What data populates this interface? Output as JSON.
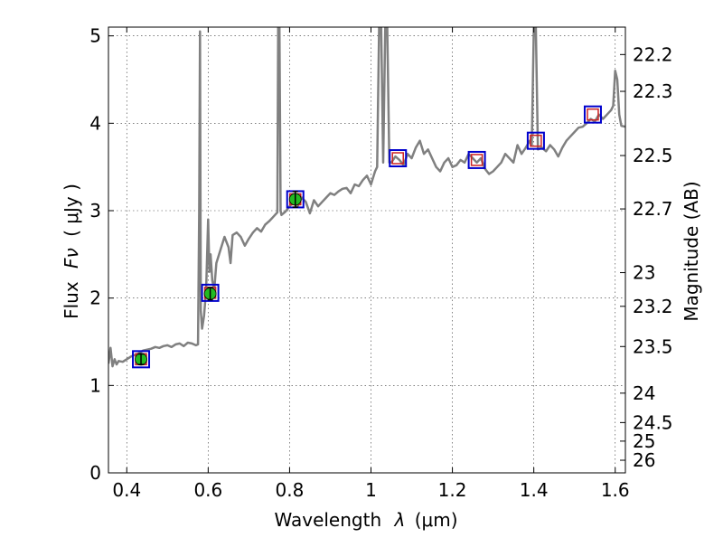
{
  "chart_data": {
    "type": "line",
    "xlabel": "Wavelength",
    "xlabel_symbol": "λ",
    "xlabel_unit": "(μm)",
    "ylabel": "Flux",
    "ylabel_symbol": "Fν",
    "ylabel_unit": "( μJy )",
    "ylabel_right": "Magnitude (AB)",
    "xlim": [
      0.355,
      1.625
    ],
    "ylim": [
      0,
      5.1
    ],
    "grid": true,
    "x_ticks": [
      0.4,
      0.6,
      0.8,
      1.0,
      1.2,
      1.4,
      1.6
    ],
    "x_tick_labels": [
      "0.4",
      "0.6",
      "0.8",
      "1",
      "1.2",
      "1.4",
      "1.6"
    ],
    "y_ticks": [
      0,
      1,
      2,
      3,
      4,
      5
    ],
    "y_tick_labels": [
      "0",
      "1",
      "2",
      "3",
      "4",
      "5"
    ],
    "right_ticks": [
      {
        "mag": 22.2,
        "label": "22.2"
      },
      {
        "mag": 22.3,
        "label": "22.3"
      },
      {
        "mag": 22.5,
        "label": "22.5"
      },
      {
        "mag": 22.7,
        "label": "22.7"
      },
      {
        "mag": 23.0,
        "label": "23"
      },
      {
        "mag": 23.2,
        "label": "23.2"
      },
      {
        "mag": 23.5,
        "label": "23.5"
      },
      {
        "mag": 24.0,
        "label": "24"
      },
      {
        "mag": 24.5,
        "label": "24.5"
      },
      {
        "mag": 25.0,
        "label": "25"
      },
      {
        "mag": 26.0,
        "label": "26"
      }
    ],
    "colors": {
      "spectrum": "#808080",
      "photometry_fill": "#22bb22",
      "model_box": "#0000cc",
      "model_box_inner": "#cc2222"
    },
    "series": [
      {
        "values": [
          [
            0.355,
            1.25
          ],
          [
            0.36,
            1.43
          ],
          [
            0.365,
            1.22
          ],
          [
            0.37,
            1.3
          ],
          [
            0.375,
            1.24
          ],
          [
            0.38,
            1.28
          ],
          [
            0.39,
            1.27
          ],
          [
            0.4,
            1.3
          ],
          [
            0.41,
            1.33
          ],
          [
            0.42,
            1.35
          ],
          [
            0.43,
            1.37
          ],
          [
            0.44,
            1.4
          ],
          [
            0.45,
            1.41
          ],
          [
            0.46,
            1.42
          ],
          [
            0.47,
            1.44
          ],
          [
            0.48,
            1.43
          ],
          [
            0.49,
            1.45
          ],
          [
            0.5,
            1.46
          ],
          [
            0.51,
            1.44
          ],
          [
            0.52,
            1.47
          ],
          [
            0.53,
            1.48
          ],
          [
            0.54,
            1.45
          ],
          [
            0.55,
            1.49
          ],
          [
            0.56,
            1.48
          ],
          [
            0.57,
            1.46
          ],
          [
            0.575,
            1.47
          ],
          [
            0.578,
            3.0
          ],
          [
            0.58,
            5.05
          ],
          [
            0.582,
            1.85
          ],
          [
            0.585,
            1.65
          ],
          [
            0.59,
            1.8
          ],
          [
            0.595,
            2.1
          ],
          [
            0.6,
            2.9
          ],
          [
            0.603,
            2.3
          ],
          [
            0.606,
            2.5
          ],
          [
            0.61,
            2.2
          ],
          [
            0.615,
            2.1
          ],
          [
            0.62,
            2.4
          ],
          [
            0.63,
            2.55
          ],
          [
            0.64,
            2.7
          ],
          [
            0.65,
            2.58
          ],
          [
            0.655,
            2.4
          ],
          [
            0.66,
            2.72
          ],
          [
            0.67,
            2.75
          ],
          [
            0.68,
            2.7
          ],
          [
            0.69,
            2.6
          ],
          [
            0.7,
            2.68
          ],
          [
            0.71,
            2.75
          ],
          [
            0.72,
            2.8
          ],
          [
            0.73,
            2.76
          ],
          [
            0.74,
            2.84
          ],
          [
            0.75,
            2.88
          ],
          [
            0.76,
            2.93
          ],
          [
            0.77,
            2.98
          ],
          [
            0.772,
            5.1
          ],
          [
            0.775,
            5.1
          ],
          [
            0.778,
            3.0
          ],
          [
            0.78,
            2.95
          ],
          [
            0.79,
            2.99
          ],
          [
            0.8,
            3.05
          ],
          [
            0.81,
            3.1
          ],
          [
            0.82,
            3.05
          ],
          [
            0.83,
            3.15
          ],
          [
            0.84,
            3.1
          ],
          [
            0.85,
            2.97
          ],
          [
            0.86,
            3.12
          ],
          [
            0.87,
            3.05
          ],
          [
            0.88,
            3.1
          ],
          [
            0.89,
            3.15
          ],
          [
            0.9,
            3.2
          ],
          [
            0.91,
            3.18
          ],
          [
            0.92,
            3.22
          ],
          [
            0.93,
            3.25
          ],
          [
            0.94,
            3.26
          ],
          [
            0.95,
            3.2
          ],
          [
            0.96,
            3.3
          ],
          [
            0.97,
            3.28
          ],
          [
            0.98,
            3.35
          ],
          [
            0.99,
            3.4
          ],
          [
            1.0,
            3.3
          ],
          [
            1.01,
            3.45
          ],
          [
            1.015,
            3.5
          ],
          [
            1.02,
            5.1
          ],
          [
            1.025,
            5.1
          ],
          [
            1.03,
            3.55
          ],
          [
            1.035,
            5.1
          ],
          [
            1.04,
            5.1
          ],
          [
            1.045,
            3.55
          ],
          [
            1.05,
            3.55
          ],
          [
            1.06,
            3.62
          ],
          [
            1.07,
            3.58
          ],
          [
            1.08,
            3.52
          ],
          [
            1.09,
            3.65
          ],
          [
            1.1,
            3.6
          ],
          [
            1.11,
            3.72
          ],
          [
            1.12,
            3.8
          ],
          [
            1.13,
            3.65
          ],
          [
            1.14,
            3.7
          ],
          [
            1.15,
            3.6
          ],
          [
            1.16,
            3.5
          ],
          [
            1.17,
            3.45
          ],
          [
            1.18,
            3.55
          ],
          [
            1.19,
            3.6
          ],
          [
            1.2,
            3.5
          ],
          [
            1.21,
            3.52
          ],
          [
            1.22,
            3.58
          ],
          [
            1.23,
            3.55
          ],
          [
            1.24,
            3.65
          ],
          [
            1.25,
            3.6
          ],
          [
            1.26,
            3.55
          ],
          [
            1.27,
            3.6
          ],
          [
            1.28,
            3.48
          ],
          [
            1.29,
            3.42
          ],
          [
            1.3,
            3.45
          ],
          [
            1.31,
            3.5
          ],
          [
            1.32,
            3.55
          ],
          [
            1.33,
            3.65
          ],
          [
            1.34,
            3.6
          ],
          [
            1.35,
            3.55
          ],
          [
            1.36,
            3.75
          ],
          [
            1.37,
            3.65
          ],
          [
            1.38,
            3.72
          ],
          [
            1.39,
            3.8
          ],
          [
            1.395,
            3.75
          ],
          [
            1.4,
            5.1
          ],
          [
            1.405,
            5.1
          ],
          [
            1.41,
            3.7
          ],
          [
            1.42,
            3.72
          ],
          [
            1.43,
            3.68
          ],
          [
            1.44,
            3.75
          ],
          [
            1.45,
            3.7
          ],
          [
            1.46,
            3.62
          ],
          [
            1.47,
            3.72
          ],
          [
            1.48,
            3.8
          ],
          [
            1.49,
            3.85
          ],
          [
            1.5,
            3.9
          ],
          [
            1.51,
            3.95
          ],
          [
            1.52,
            3.96
          ],
          [
            1.53,
            4.0
          ],
          [
            1.54,
            4.05
          ],
          [
            1.55,
            4.02
          ],
          [
            1.56,
            4.1
          ],
          [
            1.57,
            4.05
          ],
          [
            1.58,
            4.1
          ],
          [
            1.59,
            4.15
          ],
          [
            1.595,
            4.2
          ],
          [
            1.6,
            4.6
          ],
          [
            1.605,
            4.5
          ],
          [
            1.61,
            4.1
          ],
          [
            1.615,
            3.97
          ],
          [
            1.625,
            3.96
          ]
        ]
      }
    ],
    "photometry": [
      {
        "x": 0.435,
        "y": 1.3,
        "err": 0.06
      },
      {
        "x": 0.605,
        "y": 2.05,
        "err": 0.07
      },
      {
        "x": 0.814,
        "y": 3.13,
        "err": 0.09
      }
    ],
    "model_points": [
      {
        "x": 0.435,
        "y": 1.3
      },
      {
        "x": 0.605,
        "y": 2.06
      },
      {
        "x": 0.814,
        "y": 3.13
      },
      {
        "x": 1.066,
        "y": 3.6
      },
      {
        "x": 1.26,
        "y": 3.58
      },
      {
        "x": 1.405,
        "y": 3.8
      },
      {
        "x": 1.545,
        "y": 4.1
      }
    ]
  }
}
